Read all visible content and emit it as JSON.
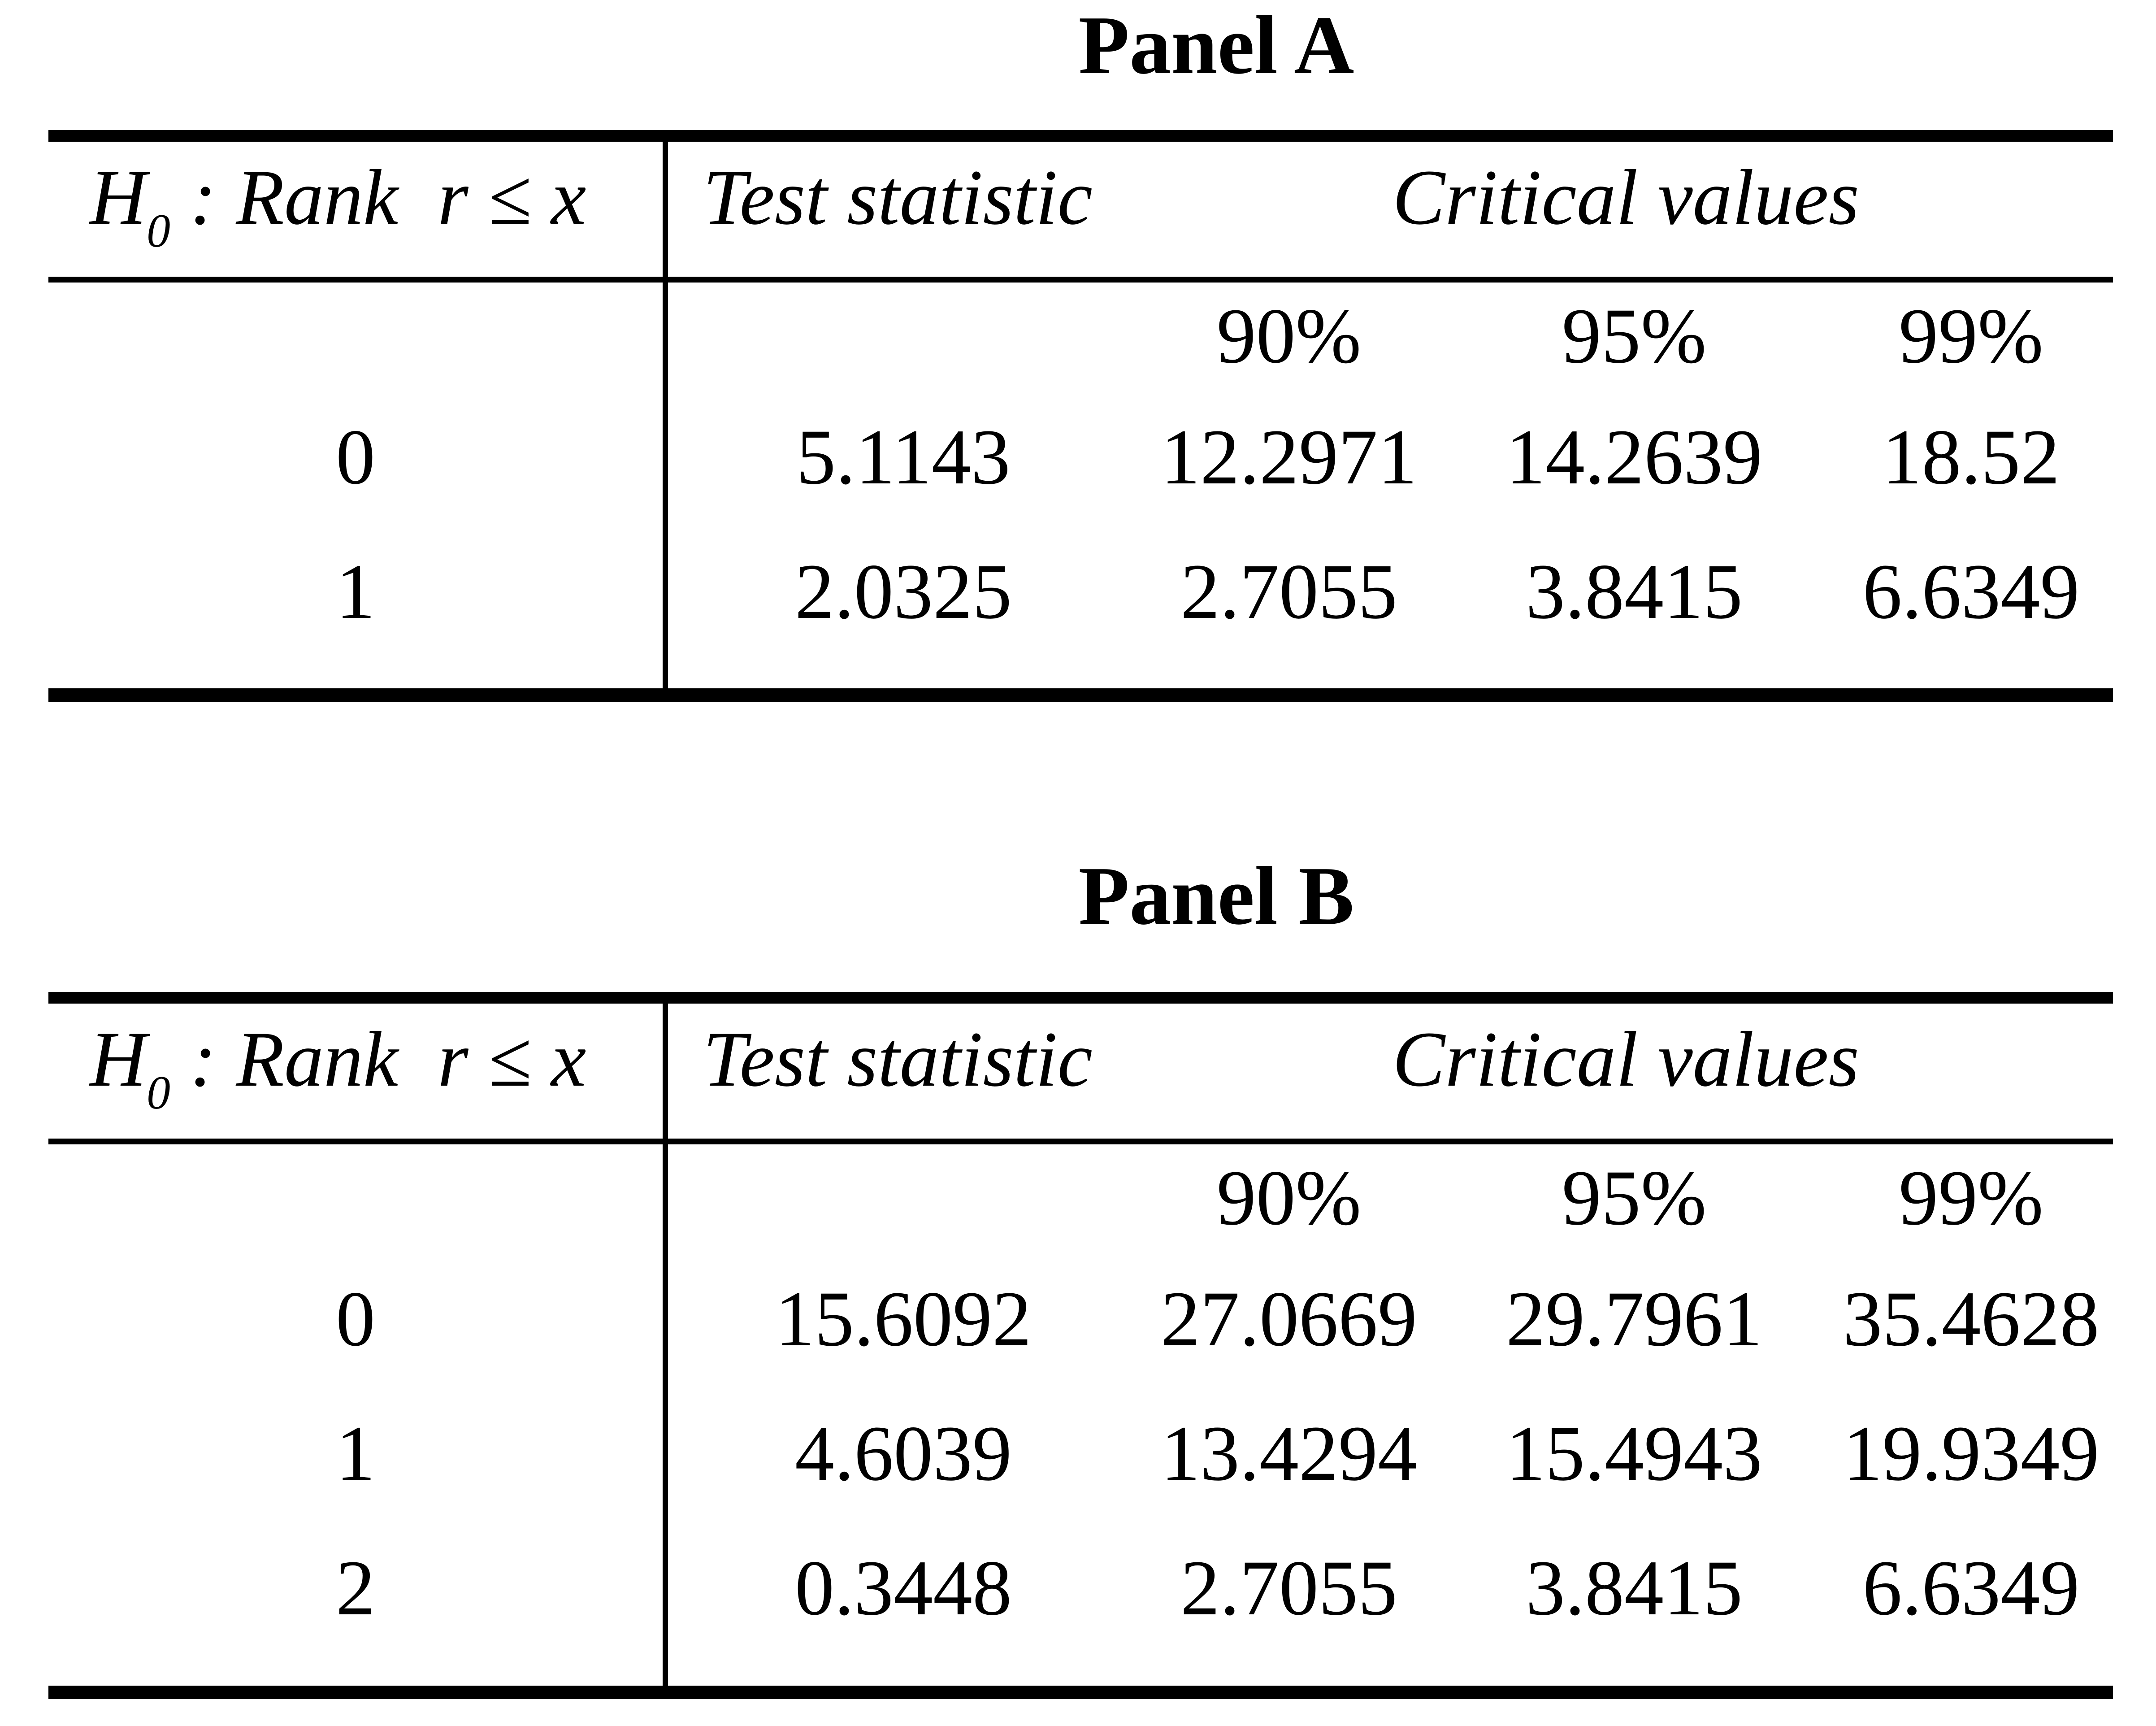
{
  "colors": {
    "ink": "#000000",
    "paper": "#ffffff"
  },
  "panels": [
    {
      "title": "Panel A",
      "header": {
        "hypothesis_base": "H",
        "hypothesis_sub": "0",
        "hypothesis_rest": " : Rank  r ≤ x",
        "test_statistic": "Test statistic",
        "critical_values": "Critical values"
      },
      "confidence_levels": [
        "90%",
        "95%",
        "99%"
      ],
      "rows": [
        {
          "rank": "0",
          "test_statistic": "5.1143",
          "critical_values": [
            "12.2971",
            "14.2639",
            "18.52"
          ]
        },
        {
          "rank": "1",
          "test_statistic": "2.0325",
          "critical_values": [
            "2.7055",
            "3.8415",
            "6.6349"
          ]
        }
      ]
    },
    {
      "title": "Panel B",
      "header": {
        "hypothesis_base": "H",
        "hypothesis_sub": "0",
        "hypothesis_rest": " : Rank  r ≤ x",
        "test_statistic": "Test statistic",
        "critical_values": "Critical values"
      },
      "confidence_levels": [
        "90%",
        "95%",
        "99%"
      ],
      "rows": [
        {
          "rank": "0",
          "test_statistic": "15.6092",
          "critical_values": [
            "27.0669",
            "29.7961",
            "35.4628"
          ]
        },
        {
          "rank": "1",
          "test_statistic": "4.6039",
          "critical_values": [
            "13.4294",
            "15.4943",
            "19.9349"
          ]
        },
        {
          "rank": "2",
          "test_statistic": "0.3448",
          "critical_values": [
            "2.7055",
            "3.8415",
            "6.6349"
          ]
        }
      ]
    }
  ],
  "chart_data": [
    {
      "type": "table",
      "title": "Panel A",
      "columns": [
        "H0 : Rank r ≤ x",
        "Test statistic",
        "90%",
        "95%",
        "99%"
      ],
      "rows": [
        [
          "0",
          "5.1143",
          "12.2971",
          "14.2639",
          "18.52"
        ],
        [
          "1",
          "2.0325",
          "2.7055",
          "3.8415",
          "6.6349"
        ]
      ]
    },
    {
      "type": "table",
      "title": "Panel B",
      "columns": [
        "H0 : Rank r ≤ x",
        "Test statistic",
        "90%",
        "95%",
        "99%"
      ],
      "rows": [
        [
          "0",
          "15.6092",
          "27.0669",
          "29.7961",
          "35.4628"
        ],
        [
          "1",
          "4.6039",
          "13.4294",
          "15.4943",
          "19.9349"
        ],
        [
          "2",
          "0.3448",
          "2.7055",
          "3.8415",
          "6.6349"
        ]
      ]
    }
  ]
}
